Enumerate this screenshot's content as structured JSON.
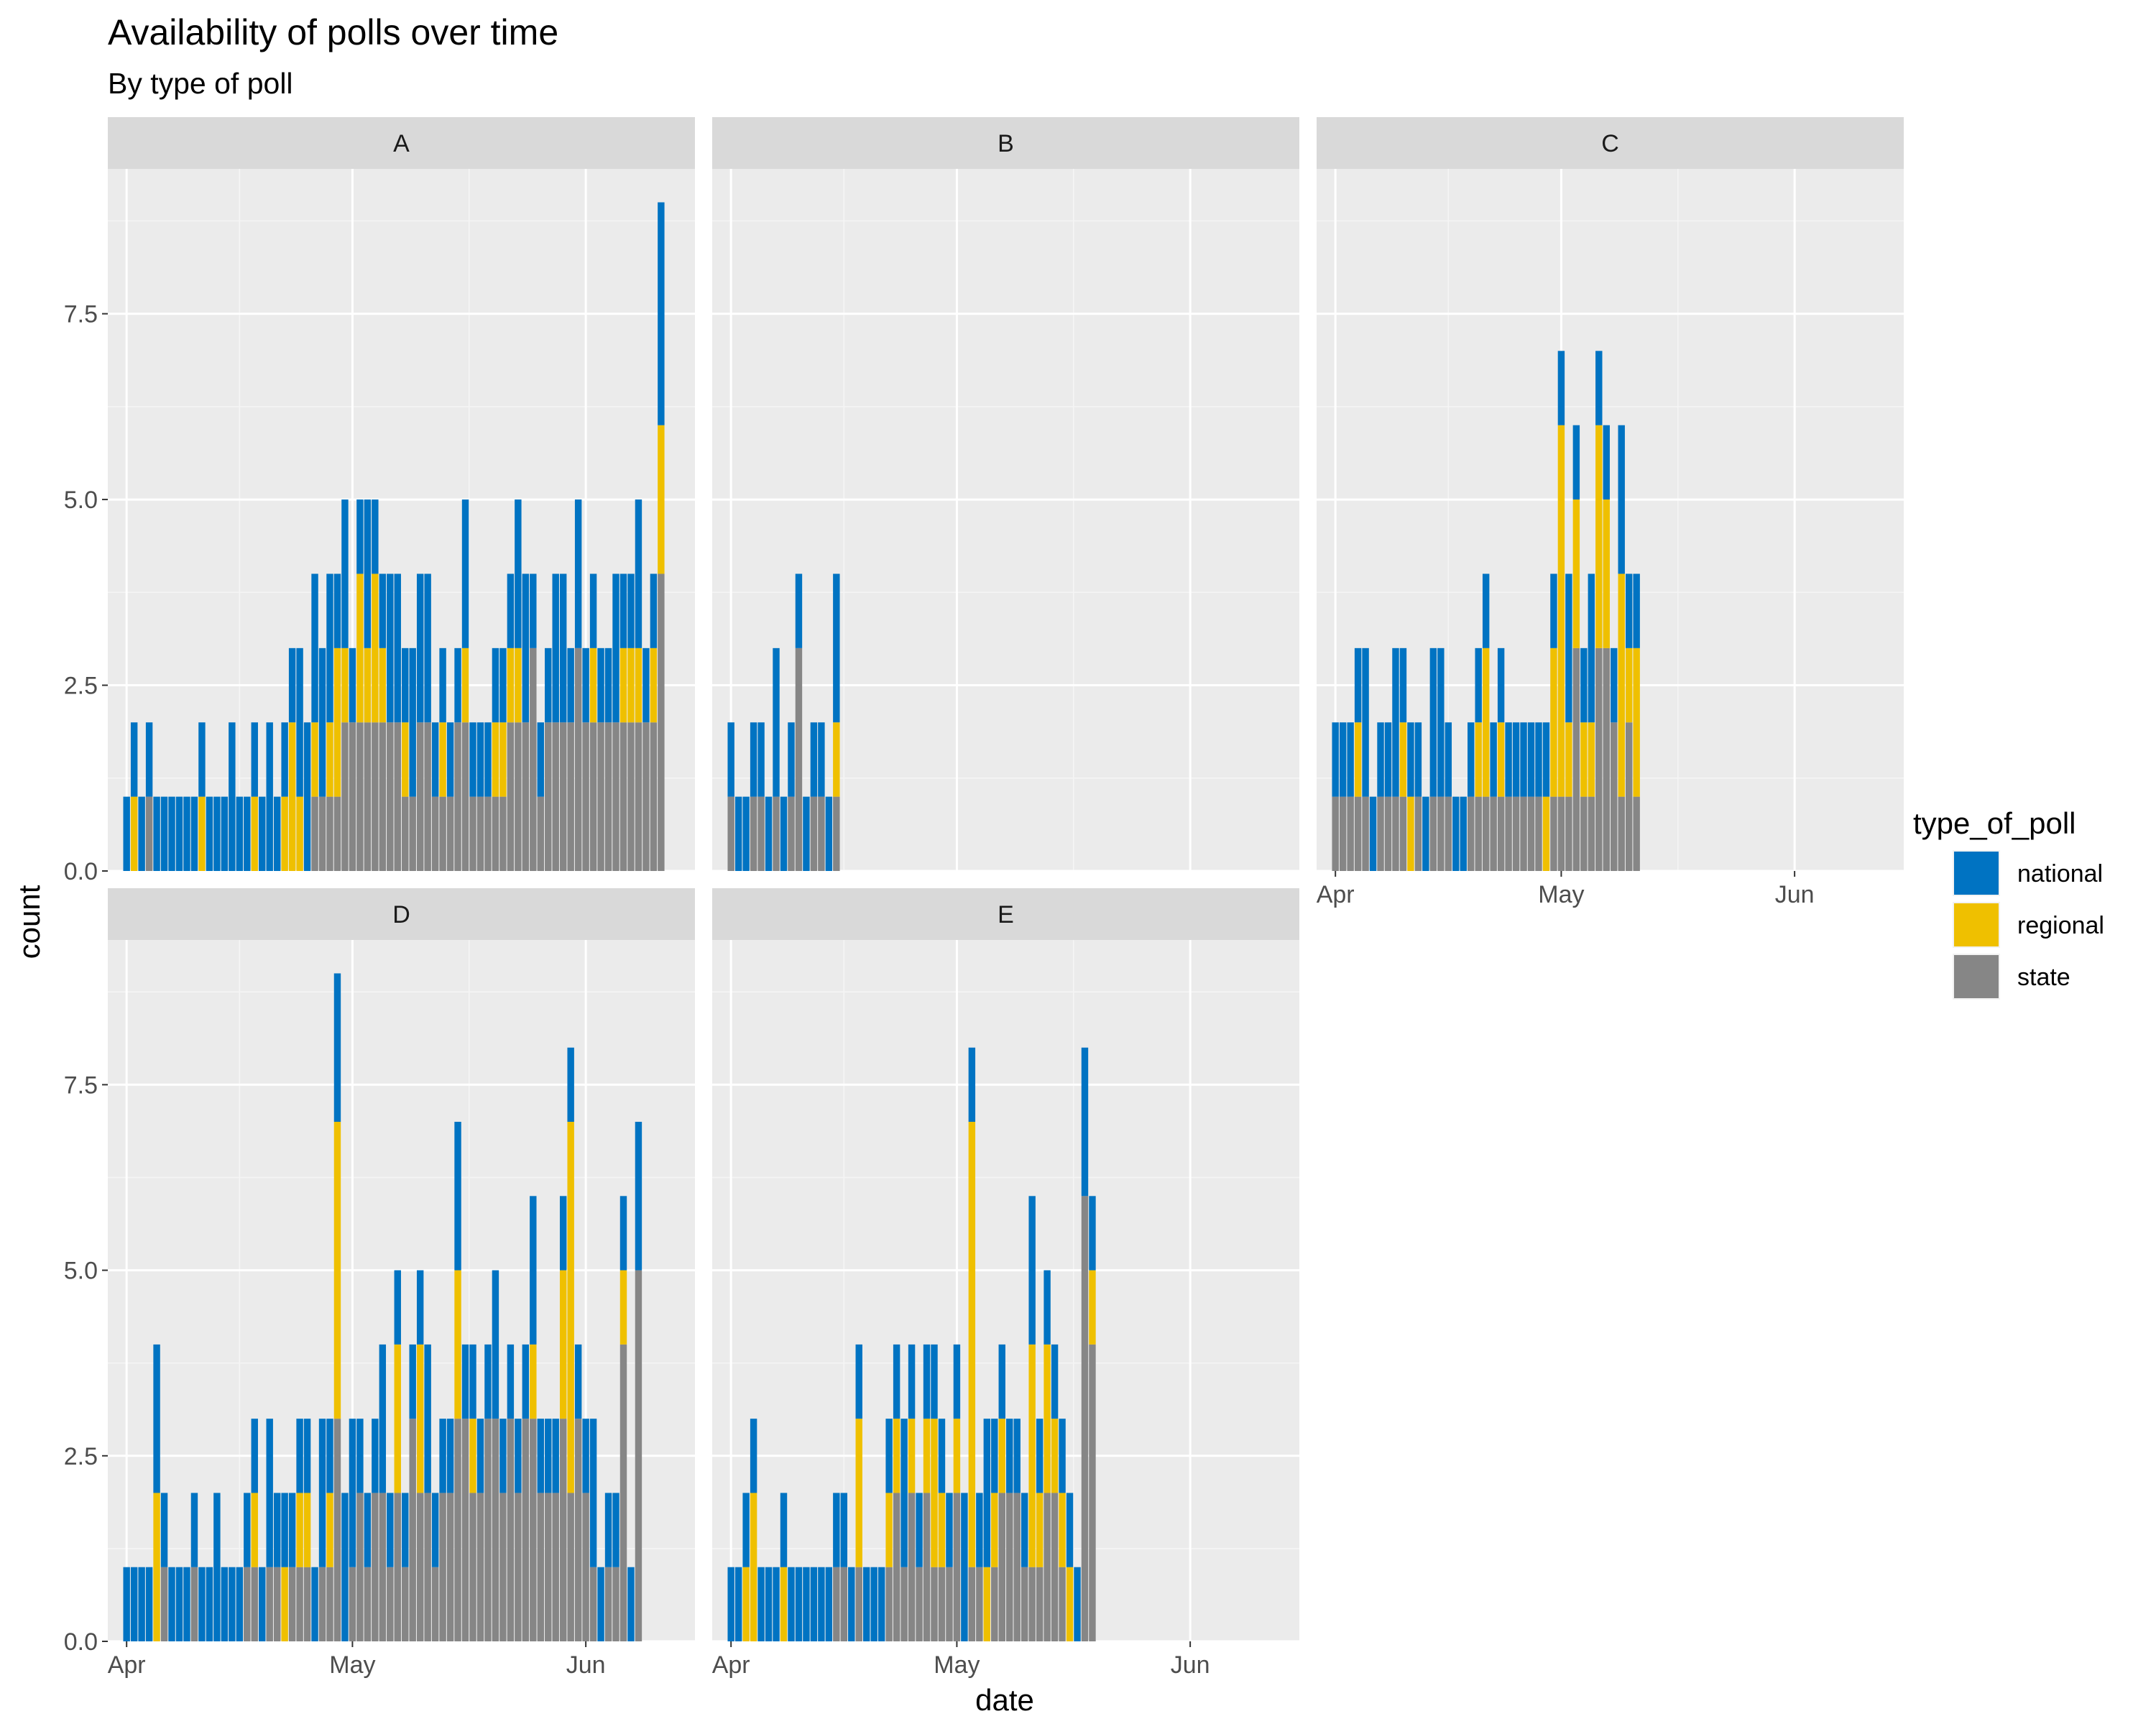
{
  "chart_data": {
    "type": "bar",
    "stacked": true,
    "title": "Availability of polls over time",
    "subtitle": "By type of poll",
    "xlabel": "date",
    "ylabel": "count",
    "ylim": [
      0,
      9.45
    ],
    "y_ticks": [
      0,
      2.5,
      5,
      7.5
    ],
    "y_tick_labels": [
      "0.0",
      "2.5",
      "5.0",
      "7.5"
    ],
    "x_tick_labels": [
      "Apr",
      "May",
      "Jun"
    ],
    "x_tick_days": [
      0,
      30,
      61
    ],
    "x_range_days": [
      -2.5,
      75.5
    ],
    "grid": true,
    "legend": {
      "title": "type_of_poll",
      "position": "right",
      "items": [
        {
          "name": "national",
          "color": "#0073C2"
        },
        {
          "name": "regional",
          "color": "#EFC000"
        },
        {
          "name": "state",
          "color": "#868686"
        }
      ]
    },
    "stack_order": [
      "state",
      "regional",
      "national"
    ],
    "colors": {
      "national": "#0073C2",
      "regional": "#EFC000",
      "state": "#868686"
    },
    "panels": [
      {
        "label": "A",
        "x_axis_shown": false,
        "days": [
          0,
          1,
          2,
          3,
          4,
          5,
          6,
          7,
          8,
          9,
          10,
          11,
          12,
          13,
          14,
          15,
          16,
          17,
          18,
          19,
          20,
          21,
          22,
          23,
          24,
          25,
          26,
          27,
          28,
          29,
          30,
          31,
          32,
          33,
          34,
          35,
          36,
          37,
          38,
          39,
          40,
          41,
          42,
          43,
          44,
          45,
          46,
          47,
          48,
          49,
          50,
          51,
          52,
          53,
          54,
          55,
          56,
          57,
          58,
          59,
          60,
          61,
          62,
          63,
          64,
          65,
          66,
          67,
          68,
          69,
          70,
          71
        ],
        "national": [
          1,
          1,
          1,
          1,
          1,
          1,
          1,
          1,
          1,
          1,
          1,
          1,
          1,
          1,
          2,
          1,
          1,
          1,
          1,
          2,
          1,
          1,
          1,
          2,
          2,
          2,
          2,
          2,
          1,
          2,
          1,
          1,
          2,
          1,
          1,
          2,
          2,
          1,
          2,
          2,
          2,
          1,
          1,
          1,
          1,
          2,
          1,
          1,
          1,
          1,
          1,
          1,
          2,
          2,
          1,
          1,
          1,
          2,
          2,
          1,
          2,
          1,
          1,
          1,
          1,
          2,
          1,
          1,
          2,
          1,
          1,
          3
        ],
        "regional": [
          0,
          1,
          0,
          0,
          0,
          0,
          0,
          0,
          0,
          0,
          1,
          0,
          0,
          0,
          0,
          0,
          0,
          1,
          0,
          0,
          0,
          1,
          2,
          1,
          0,
          1,
          0,
          1,
          2,
          1,
          0,
          2,
          1,
          2,
          1,
          0,
          0,
          1,
          0,
          0,
          0,
          0,
          1,
          0,
          0,
          1,
          0,
          0,
          0,
          1,
          1,
          1,
          1,
          0,
          0,
          0,
          0,
          0,
          0,
          0,
          0,
          0,
          1,
          0,
          0,
          0,
          1,
          1,
          1,
          0,
          1,
          2
        ],
        "state": [
          0,
          0,
          0,
          1,
          0,
          0,
          0,
          0,
          0,
          0,
          0,
          0,
          0,
          0,
          0,
          0,
          0,
          0,
          0,
          0,
          0,
          0,
          0,
          0,
          0,
          1,
          1,
          1,
          1,
          2,
          2,
          2,
          2,
          2,
          2,
          2,
          2,
          1,
          1,
          2,
          2,
          1,
          1,
          1,
          2,
          2,
          1,
          1,
          1,
          1,
          1,
          2,
          2,
          2,
          3,
          1,
          2,
          2,
          2,
          2,
          3,
          2,
          2,
          2,
          2,
          2,
          2,
          2,
          2,
          2,
          2,
          4
        ]
      },
      {
        "label": "B",
        "x_axis_shown": false,
        "days": [
          0,
          1,
          2,
          3,
          4,
          5,
          6,
          7,
          8,
          9,
          10,
          11,
          12,
          13,
          14
        ],
        "national": [
          1,
          1,
          1,
          1,
          1,
          1,
          2,
          1,
          1,
          1,
          1,
          1,
          1,
          1,
          2
        ],
        "regional": [
          0,
          0,
          0,
          0,
          0,
          0,
          0,
          0,
          0,
          0,
          0,
          0,
          0,
          0,
          1
        ],
        "state": [
          1,
          0,
          0,
          1,
          1,
          0,
          1,
          0,
          1,
          3,
          0,
          1,
          1,
          0,
          1
        ]
      },
      {
        "label": "C",
        "x_axis_shown": true,
        "days": [
          0,
          1,
          2,
          3,
          4,
          5,
          6,
          7,
          8,
          9,
          10,
          11,
          12,
          13,
          14,
          15,
          16,
          17,
          18,
          19,
          20,
          21,
          22,
          23,
          24,
          25,
          26,
          27,
          28,
          29,
          30,
          31,
          32,
          33,
          34,
          35,
          36,
          37,
          38,
          39,
          40
        ],
        "national": [
          1,
          1,
          1,
          1,
          2,
          1,
          1,
          1,
          2,
          1,
          1,
          1,
          1,
          2,
          2,
          1,
          1,
          1,
          1,
          1,
          1,
          1,
          1,
          1,
          1,
          1,
          1,
          1,
          1,
          1,
          1,
          2,
          1,
          1,
          2,
          1,
          1,
          1,
          2,
          1,
          1
        ],
        "regional": [
          0,
          0,
          0,
          1,
          0,
          0,
          0,
          0,
          0,
          1,
          1,
          0,
          0,
          0,
          0,
          0,
          0,
          0,
          0,
          1,
          2,
          0,
          1,
          0,
          0,
          0,
          0,
          0,
          1,
          2,
          5,
          1,
          2,
          1,
          1,
          3,
          2,
          0,
          3,
          1,
          2
        ],
        "state": [
          1,
          1,
          1,
          1,
          1,
          0,
          1,
          1,
          1,
          1,
          0,
          1,
          0,
          1,
          1,
          1,
          0,
          0,
          1,
          1,
          1,
          1,
          1,
          1,
          1,
          1,
          1,
          1,
          0,
          1,
          1,
          1,
          3,
          1,
          1,
          3,
          3,
          2,
          1,
          2,
          1
        ]
      },
      {
        "label": "D",
        "x_axis_shown": true,
        "days": [
          0,
          1,
          2,
          3,
          4,
          5,
          6,
          7,
          8,
          9,
          10,
          11,
          12,
          13,
          14,
          15,
          16,
          17,
          18,
          19,
          20,
          21,
          22,
          23,
          24,
          25,
          26,
          27,
          28,
          29,
          30,
          31,
          32,
          33,
          34,
          35,
          36,
          37,
          38,
          39,
          40,
          41,
          42,
          43,
          44,
          45,
          46,
          47,
          48,
          49,
          50,
          51,
          52,
          53,
          54,
          55,
          56,
          57,
          58,
          59,
          60,
          61,
          62,
          63,
          64,
          65,
          66,
          67,
          68
        ],
        "national": [
          1,
          1,
          1,
          1,
          2,
          1,
          1,
          1,
          1,
          1,
          1,
          1,
          2,
          1,
          1,
          1,
          1,
          1,
          1,
          2,
          1,
          1,
          1,
          1,
          1,
          1,
          2,
          1,
          2,
          2,
          2,
          1,
          1,
          1,
          2,
          1,
          1,
          1,
          1,
          1,
          2,
          1,
          1,
          1,
          2,
          1,
          1,
          1,
          1,
          2,
          1,
          1,
          1,
          1,
          2,
          1,
          1,
          1,
          1,
          1,
          1,
          1,
          2,
          1,
          1,
          1,
          1,
          1,
          2
        ],
        "regional": [
          0,
          0,
          0,
          0,
          2,
          0,
          0,
          0,
          0,
          0,
          0,
          0,
          0,
          0,
          0,
          0,
          0,
          1,
          0,
          0,
          0,
          1,
          0,
          1,
          1,
          0,
          0,
          1,
          4,
          0,
          0,
          0,
          0,
          0,
          0,
          0,
          2,
          0,
          0,
          2,
          0,
          0,
          0,
          0,
          2,
          0,
          1,
          0,
          0,
          0,
          0,
          0,
          0,
          0,
          1,
          0,
          0,
          0,
          2,
          5,
          0,
          0,
          0,
          0,
          0,
          0,
          1,
          0,
          0
        ],
        "state": [
          0,
          0,
          0,
          0,
          0,
          1,
          0,
          0,
          0,
          1,
          0,
          0,
          0,
          0,
          0,
          0,
          1,
          1,
          0,
          1,
          1,
          0,
          1,
          1,
          1,
          0,
          1,
          1,
          3,
          0,
          1,
          2,
          1,
          2,
          2,
          1,
          2,
          1,
          3,
          2,
          2,
          1,
          2,
          2,
          3,
          3,
          2,
          2,
          3,
          3,
          2,
          3,
          2,
          3,
          3,
          2,
          2,
          2,
          3,
          2,
          3,
          2,
          1,
          0,
          1,
          1,
          4,
          0,
          5
        ]
      },
      {
        "label": "E",
        "x_axis_shown": true,
        "days": [
          0,
          1,
          2,
          3,
          4,
          5,
          6,
          7,
          8,
          9,
          10,
          11,
          12,
          13,
          14,
          15,
          16,
          17,
          18,
          19,
          20,
          21,
          22,
          23,
          24,
          25,
          26,
          27,
          28,
          29,
          30,
          31,
          32,
          33,
          34,
          35,
          36,
          37,
          38,
          39,
          40,
          41,
          42,
          43,
          44,
          45,
          46,
          47,
          48
        ],
        "national": [
          1,
          1,
          1,
          1,
          1,
          1,
          1,
          1,
          1,
          1,
          1,
          1,
          1,
          1,
          1,
          1,
          1,
          1,
          1,
          1,
          1,
          1,
          1,
          2,
          1,
          1,
          1,
          1,
          1,
          1,
          1,
          2,
          1,
          1,
          2,
          1,
          1,
          1,
          1,
          1,
          2,
          1,
          1,
          1,
          1,
          1,
          1,
          2,
          1
        ],
        "regional": [
          0,
          0,
          1,
          2,
          0,
          0,
          0,
          1,
          0,
          0,
          0,
          0,
          0,
          0,
          0,
          0,
          0,
          2,
          0,
          0,
          0,
          1,
          1,
          0,
          1,
          0,
          1,
          2,
          1,
          0,
          1,
          0,
          6,
          0,
          1,
          1,
          1,
          0,
          0,
          0,
          3,
          1,
          2,
          1,
          1,
          1,
          0,
          0,
          1
        ],
        "state": [
          0,
          0,
          0,
          0,
          0,
          0,
          0,
          0,
          0,
          0,
          0,
          0,
          0,
          0,
          1,
          1,
          0,
          1,
          0,
          0,
          0,
          1,
          2,
          1,
          2,
          1,
          2,
          1,
          1,
          1,
          2,
          0,
          1,
          1,
          0,
          1,
          2,
          2,
          2,
          1,
          1,
          1,
          2,
          2,
          1,
          0,
          0,
          6,
          4
        ]
      }
    ]
  }
}
